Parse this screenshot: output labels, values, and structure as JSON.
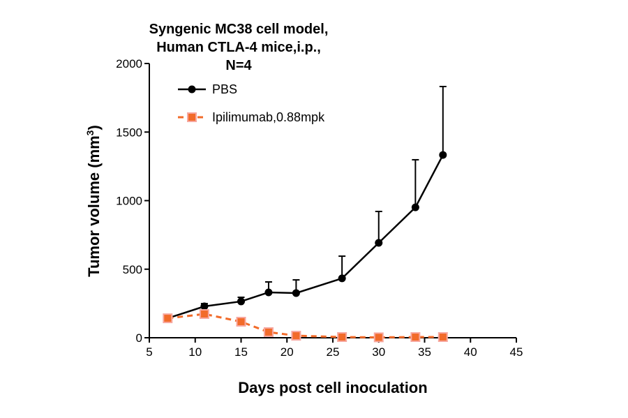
{
  "chart_data": {
    "type": "line",
    "title": [
      "Syngenic MC38 cell model,",
      "Human CTLA-4 mice,i.p.,",
      "N=4"
    ],
    "xlabel": "Days post cell inoculation",
    "ylabel": "Tumor volume (mm",
    "ylabel_sup": "3",
    "ylabel_end": ")",
    "xlim": [
      5,
      45
    ],
    "ylim": [
      0,
      2000
    ],
    "xticks": [
      5,
      10,
      15,
      20,
      25,
      30,
      35,
      40,
      45
    ],
    "yticks": [
      0,
      500,
      1000,
      1500,
      2000
    ],
    "grid": false,
    "legend_placement": "top-left",
    "series": [
      {
        "name": "PBS",
        "color": "#000000",
        "marker": "circle",
        "line": "solid",
        "x": [
          7,
          11,
          15,
          18,
          21,
          26,
          30,
          34,
          37
        ],
        "y": [
          142,
          229,
          265,
          331,
          326,
          433,
          692,
          951,
          1333
        ],
        "error_upper": [
          150,
          249,
          295,
          407,
          422,
          595,
          921,
          1298,
          1832
        ]
      },
      {
        "name": "Ipilimumab,0.88mpk",
        "color": "#f26b2a",
        "marker": "square",
        "line": "dashed",
        "x": [
          7,
          11,
          15,
          18,
          21,
          26,
          30,
          34,
          37
        ],
        "y": [
          142,
          173,
          117,
          41,
          15,
          5,
          3,
          5,
          5
        ]
      }
    ]
  }
}
